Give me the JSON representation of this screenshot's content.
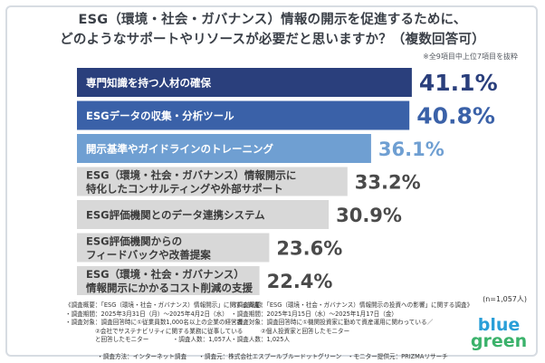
{
  "title_line1": "ESG（環境・社会・ガバナンス）情報の開示を促進するために、",
  "title_line2": "どのようなサポートやリソースが必要だと思いますか？（複数回答可）",
  "note": "※全9項目中上位7項目を抜粋",
  "chart_data": {
    "type": "bar",
    "orientation": "horizontal",
    "categories": [
      [
        "専門知識を持つ人材の確保"
      ],
      [
        "ESGデータの収集・分析ツール"
      ],
      [
        "開示基準やガイドラインのトレーニング"
      ],
      [
        "ESG（環境・社会・ガバナンス）情報開示に",
        "特化したコンサルティングや外部サポート"
      ],
      [
        "ESG評価機関とのデータ連携システム"
      ],
      [
        "ESG評価機関からの",
        "フィードバックや改善提案"
      ],
      [
        "ESG（環境・社会・ガバナンス）",
        "情報開示にかかるコスト削減の支援"
      ]
    ],
    "values": [
      41.1,
      40.8,
      36.1,
      33.2,
      30.9,
      23.6,
      22.4
    ],
    "value_labels": [
      "41.1%",
      "40.8%",
      "36.1%",
      "33.2%",
      "30.9%",
      "23.6%",
      "22.4%"
    ],
    "bar_colors": [
      "#2a3f7c",
      "#3a61a8",
      "#6f9fd2",
      "#d8d8d8",
      "#d8d8d8",
      "#d8d8d8",
      "#d8d8d8"
    ],
    "label_colors": [
      "#ffffff",
      "#ffffff",
      "#ffffff",
      "#3b3b3b",
      "#3b3b3b",
      "#3b3b3b",
      "#3b3b3b"
    ],
    "value_colors": [
      "#2a3f7c",
      "#3a61a8",
      "#6f9fd2",
      "#4a4a4a",
      "#4a4a4a",
      "#4a4a4a",
      "#4a4a4a"
    ],
    "xlim": [
      0,
      45
    ]
  },
  "sample_size": "(n=1,057人)",
  "survey1": {
    "line1": "《調査概要：「ESG（環境・社会・ガバナンス）情報開示」に関する調査》",
    "line2": "・調査期間：2025年3月31日（月）〜2025年4月2日（水）",
    "line3": "・調査対象：調査回答時に①従業員数1,000名以上の企業の経営者／",
    "line4": "　　　　　②会社でサステナビリティに関する業務に従事している",
    "line5": "　　　　　と回答したモニター　　　　・調査人数：1,057人"
  },
  "survey2": {
    "line1": "《調査概要：「ESG（環境・社会・ガバナンス）情報開示の投資への影響」に関する調査》",
    "line2": "・調査期間：2025年1月15日（水）〜2025年1月17日（金）",
    "line3": "・調査対象：調査回答時に①機関投資家に勤めて資産運用に関わっている／",
    "line4": "　　　　　②個人投資家と回答したモニター",
    "line5": "・調査人数：1,025人"
  },
  "footer": "・調査方法：インターネット調査　　・調査元：株式会社エスプールブルードットグリーン　・モニター提供元：PRIZMAリサーチ",
  "logo": {
    "line1": "blue",
    "line2": "green"
  }
}
